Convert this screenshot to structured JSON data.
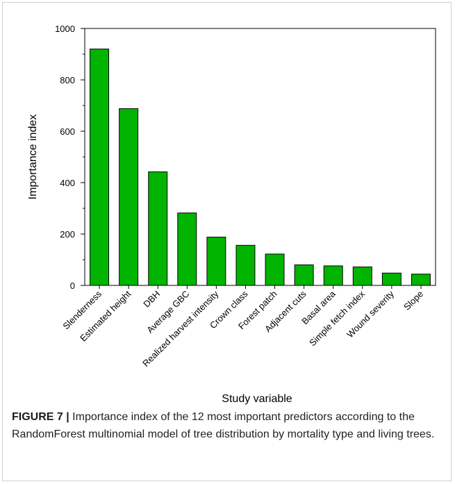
{
  "chart_data": {
    "type": "bar",
    "title": "",
    "xlabel": "Study variable",
    "ylabel": "Importance index",
    "ylim": [
      0,
      1000
    ],
    "yticks": [
      0,
      200,
      400,
      600,
      800,
      1000
    ],
    "bar_color": "#00b400",
    "bar_edge_color": "#000000",
    "categories": [
      "Slenderness",
      "Estimated height",
      "DBH",
      "Average GBC",
      "Realized harvest intensity",
      "Crown class",
      "Forest patch",
      "Adjacent cuts",
      "Basal area",
      "Simple fetch index",
      "Wound severity",
      "Slope"
    ],
    "values": [
      920,
      688,
      442,
      282,
      188,
      156,
      122,
      80,
      76,
      72,
      48,
      44
    ]
  },
  "caption": {
    "label": "FIGURE 7 |",
    "text": "Importance index of the 12 most important predictors according to the RandomForest multinomial model of tree distribution by mortality type and living trees."
  }
}
